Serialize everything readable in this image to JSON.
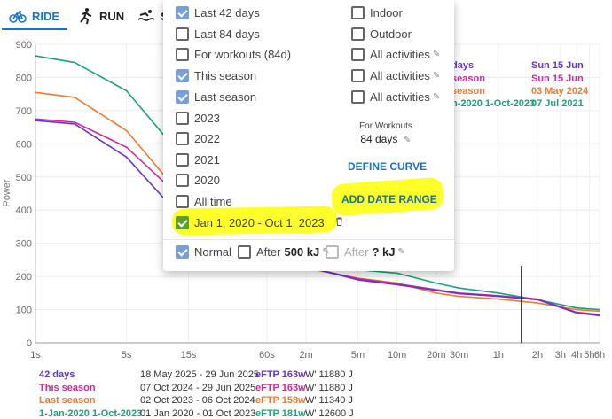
{
  "tabs": [
    {
      "label": "RIDE",
      "icon": "bicycle-icon",
      "active": true
    },
    {
      "label": "RUN",
      "icon": "runner-icon",
      "active": false
    },
    {
      "label": "S",
      "icon": "swimmer-icon",
      "active": false
    }
  ],
  "colors": {
    "accent": "#1a73c8",
    "series_42days": "#6633cc",
    "series_this_season": "#cc2a9c",
    "series_last_season": "#f07a30",
    "series_range": "#1aa37a",
    "highlight": "#ffff2a"
  },
  "chart_data": {
    "type": "line",
    "ylabel": "Power",
    "ylim": [
      0,
      900
    ],
    "yticks": [
      "0",
      "100",
      "200",
      "300",
      "400",
      "500",
      "600",
      "700",
      "800",
      "900"
    ],
    "xscale": "log",
    "xticks": [
      "1s",
      "5s",
      "15s",
      "60s",
      "2m",
      "5m",
      "10m",
      "20m",
      "30m",
      "1h",
      "2h",
      "3h",
      "4h",
      "5h",
      "6h"
    ],
    "series": [
      {
        "name": "42 days",
        "x_sec": [
          1,
          2,
          5,
          10,
          15,
          30,
          60,
          120,
          300,
          600,
          1200,
          1800,
          3600,
          7200,
          14400,
          21600
        ],
        "values": [
          670,
          660,
          560,
          430,
          375,
          330,
          250,
          230,
          190,
          175,
          158,
          148,
          140,
          130,
          90,
          82
        ]
      },
      {
        "name": "This season",
        "x_sec": [
          1,
          2,
          5,
          10,
          15,
          30,
          60,
          120,
          300,
          600,
          1200,
          1800,
          3600,
          7200,
          14400,
          21600
        ],
        "values": [
          675,
          665,
          590,
          480,
          440,
          380,
          255,
          228,
          193,
          178,
          160,
          150,
          142,
          132,
          92,
          85
        ]
      },
      {
        "name": "Last season",
        "x_sec": [
          1,
          2,
          5,
          10,
          15,
          30,
          60,
          120,
          300,
          600,
          1200,
          1800,
          3600,
          7200,
          14400,
          21600
        ],
        "values": [
          755,
          740,
          640,
          500,
          450,
          390,
          260,
          225,
          195,
          180,
          150,
          140,
          132,
          120,
          100,
          95
        ]
      },
      {
        "name": "1-Jan-2020 1-Oct-2023",
        "x_sec": [
          1,
          2,
          5,
          10,
          15,
          30,
          60,
          120,
          300,
          600,
          1200,
          1800,
          3600,
          7200,
          14400,
          21600
        ],
        "values": [
          865,
          845,
          760,
          620,
          560,
          470,
          330,
          250,
          220,
          210,
          180,
          165,
          150,
          130,
          105,
          100
        ]
      }
    ]
  },
  "right_legend": [
    {
      "name": "days",
      "date": "Sun 15 Jun"
    },
    {
      "name": "season",
      "date": "Sun 15 Jun"
    },
    {
      "name": "season",
      "date": "03 May 2024"
    },
    {
      "name": "n-2020 1-Oct-2023",
      "date": "07 Jul 2021"
    }
  ],
  "bottom_legend": [
    {
      "name": "42 days",
      "dates": "18 May 2025  - 29 Jun 2025",
      "eftp": "eFTP 163w",
      "w": "W' 11880 J"
    },
    {
      "name": "This season",
      "dates": "07 Oct 2024  - 29 Jun 2025",
      "eftp": "eFTP 163w",
      "w": "W' 11880 J"
    },
    {
      "name": "Last season",
      "dates": "02 Oct 2023  - 06 Oct 2024",
      "eftp": "eFTP 158w",
      "w": "W' 11340 J"
    },
    {
      "name": "1-Jan-2020 1-Oct-2023",
      "dates": "01 Jan 2020  - 01 Oct 2023",
      "eftp": "eFTP 181w",
      "w": "W' 12600 J"
    }
  ],
  "popup": {
    "periods": [
      {
        "label": "Last 42 days",
        "checked": true
      },
      {
        "label": "Last 84 days",
        "checked": false
      },
      {
        "label": "For workouts (84d)",
        "checked": false
      },
      {
        "label": "This season",
        "checked": true
      },
      {
        "label": "Last season",
        "checked": true
      },
      {
        "label": "2023",
        "checked": false
      },
      {
        "label": "2022",
        "checked": false
      },
      {
        "label": "2021",
        "checked": false
      },
      {
        "label": "2020",
        "checked": false
      },
      {
        "label": "All time",
        "checked": false
      },
      {
        "label": "Jan 1, 2020 - Oct 1, 2023",
        "checked": true
      }
    ],
    "filters": [
      {
        "label": "Indoor",
        "checked": false
      },
      {
        "label": "Outdoor",
        "checked": false
      },
      {
        "label": "All activities",
        "checked": false
      },
      {
        "label": "All activities",
        "checked": false
      },
      {
        "label": "All activities",
        "checked": false
      }
    ],
    "for_workouts_label": "For Workouts",
    "for_workouts_value": "84 days",
    "define_curve": "DEFINE CURVE",
    "add_date_range": "ADD DATE RANGE",
    "normal_label": "Normal",
    "normal_checked": true,
    "after_label": "After",
    "after_value": "500 kJ",
    "after2_label": "After",
    "after2_value": "? kJ"
  }
}
